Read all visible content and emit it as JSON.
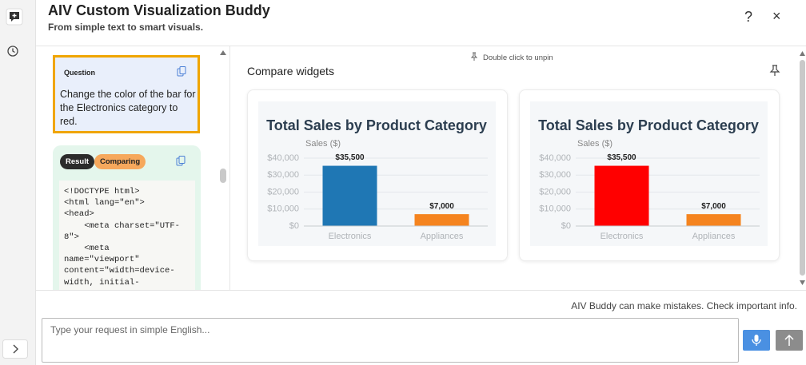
{
  "header": {
    "title": "AIV Custom Visualization Buddy",
    "subtitle": "From simple text to smart visuals.",
    "help": "?",
    "close": "×"
  },
  "conversation": {
    "question": {
      "label": "Question",
      "text": "Change the color of the bar for the Electronics category to red."
    },
    "result": {
      "badges": [
        "Result",
        "Comparing"
      ],
      "code_lines": [
        "<!DOCTYPE html>",
        "<html lang=\"en\">",
        "<head>",
        "    <meta charset=\"UTF-",
        "8\">",
        "    <meta",
        "name=\"viewport\"",
        "content=\"width=device-",
        "width, initial-"
      ]
    }
  },
  "compare": {
    "unpin_hint": "Double click to unpin",
    "title": "Compare widgets",
    "widgets": [
      {
        "type": "bar",
        "title": "Total Sales by Product Category",
        "y_label": "Sales ($)",
        "categories": [
          "Electronics",
          "Appliances"
        ],
        "values": [
          35500,
          7000
        ],
        "value_labels": [
          "$35,500",
          "$7,000"
        ],
        "colors": [
          "#1f77b4",
          "#f5841f"
        ],
        "ylim": [
          0,
          40000
        ],
        "yticks": [
          {
            "value": 0,
            "label": "$0"
          },
          {
            "value": 10000,
            "label": "$10,000"
          },
          {
            "value": 20000,
            "label": "$20,000"
          },
          {
            "value": 30000,
            "label": "$30,000"
          },
          {
            "value": 40000,
            "label": "$40,000"
          }
        ]
      },
      {
        "type": "bar",
        "title": "Total Sales by Product Category",
        "y_label": "Sales ($)",
        "categories": [
          "Electronics",
          "Appliances"
        ],
        "values": [
          35500,
          7000
        ],
        "value_labels": [
          "$35,500",
          "$7,000"
        ],
        "colors": [
          "#ff0000",
          "#f5841f"
        ],
        "ylim": [
          0,
          40000
        ],
        "yticks": [
          {
            "value": 0,
            "label": "$0"
          },
          {
            "value": 10000,
            "label": "$10,000"
          },
          {
            "value": 20000,
            "label": "$20,000"
          },
          {
            "value": 30000,
            "label": "$30,000"
          },
          {
            "value": 40000,
            "label": "$40,000"
          }
        ]
      }
    ]
  },
  "footer": {
    "disclaimer": "AIV Buddy can make mistakes. Check important info.",
    "input_placeholder": "Type your request in simple English..."
  }
}
